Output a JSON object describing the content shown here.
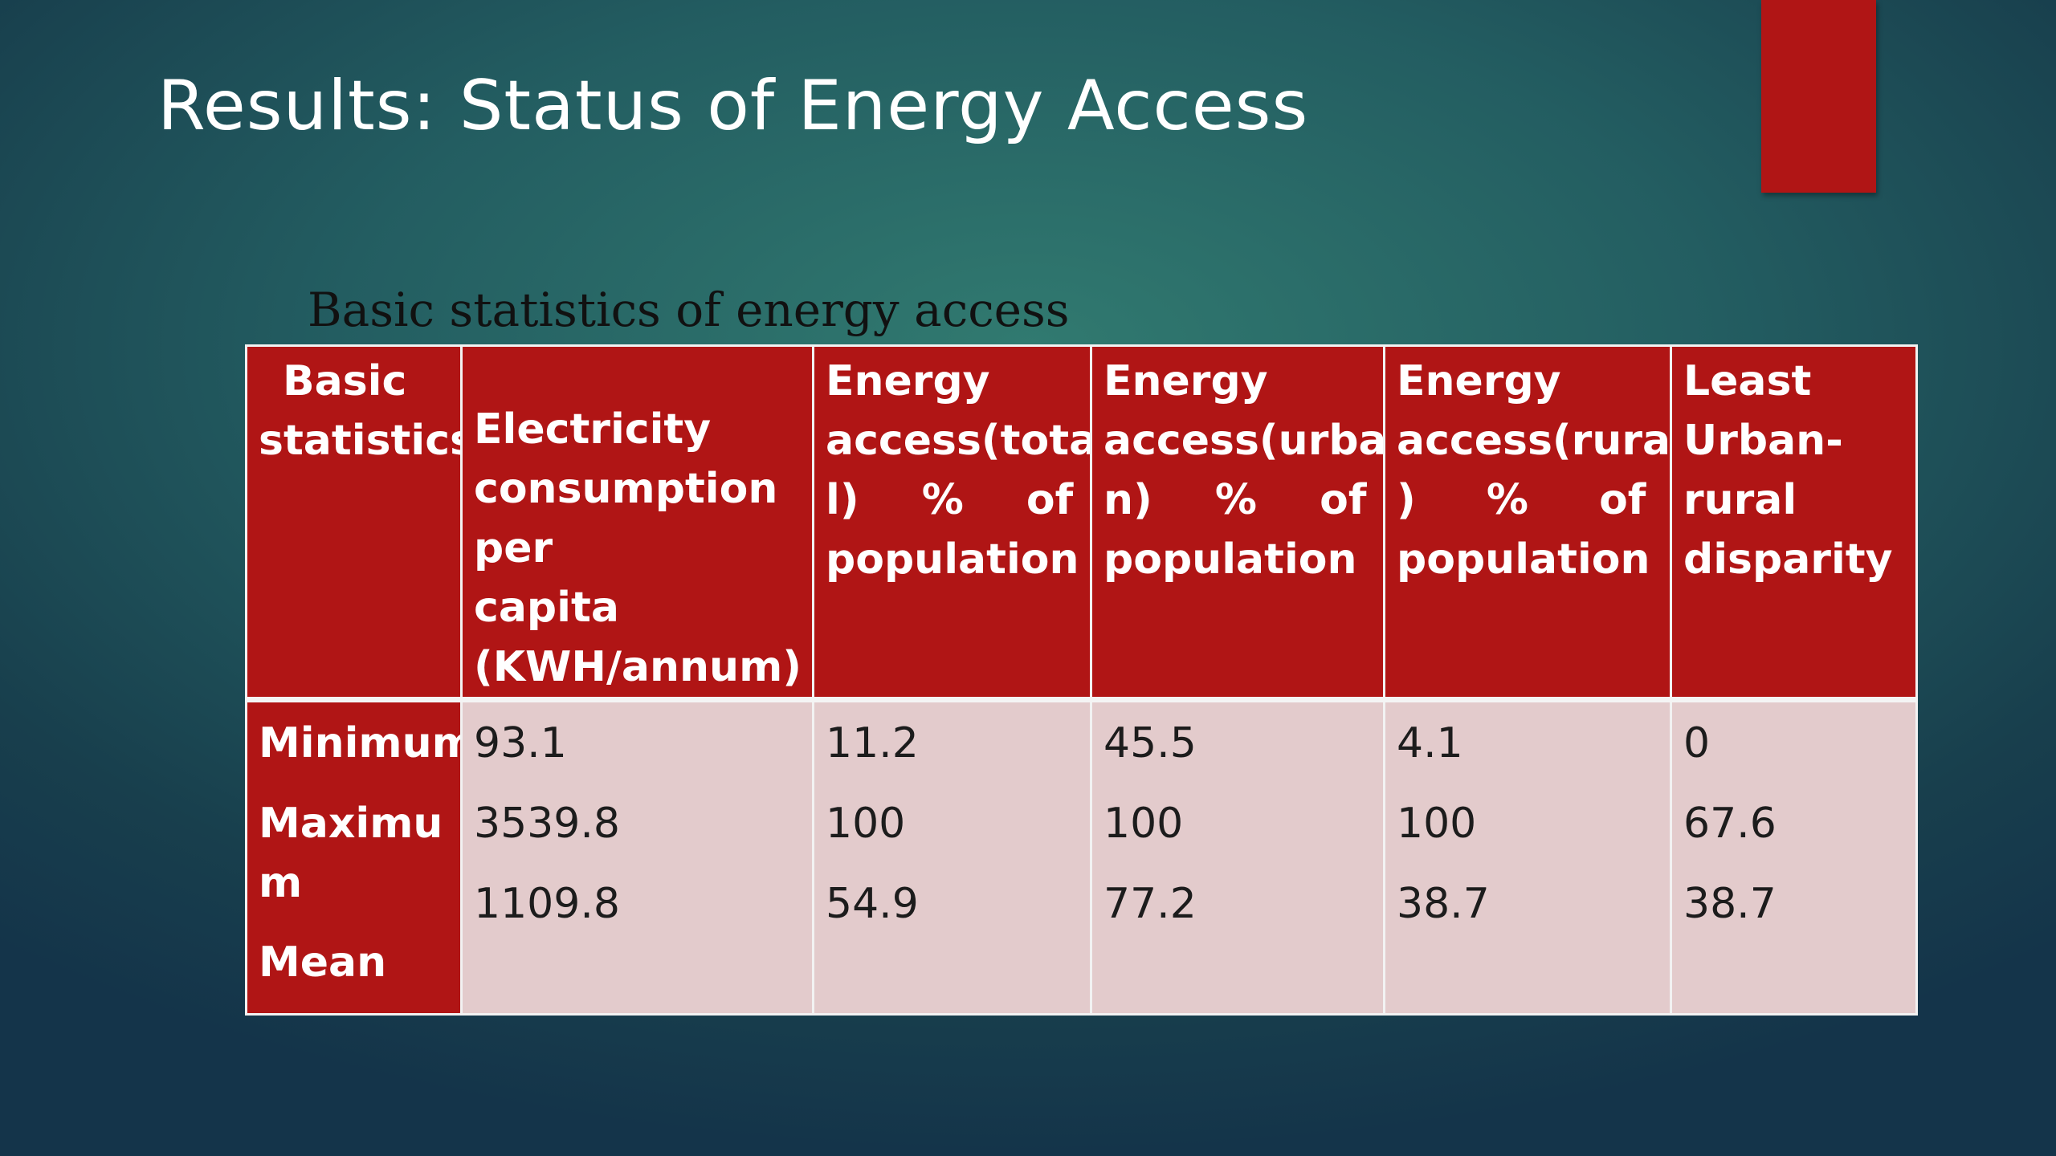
{
  "slide": {
    "title": "Results: Status of Energy Access",
    "caption": "Basic statistics of energy access",
    "accent_color": "#b01515"
  },
  "table": {
    "headers": [
      "Basic statistics",
      "Electricity consumption per capita (KWH/annum)",
      "Energy access(total) % of population",
      "Energy access(urban) % of population",
      "Energy access(rural) % of population",
      "Least Urban-rural disparity"
    ],
    "header_lines": [
      [
        "Basic",
        "statistics"
      ],
      [
        "Electricity",
        "consumption",
        "per capita",
        "(KWH/annum)"
      ],
      [
        "Energy",
        "access(tota",
        "l) % of",
        "population"
      ],
      [
        "Energy",
        "access(urba",
        "n) % of",
        "population"
      ],
      [
        "Energy",
        "access(rural",
        ") % of",
        "population"
      ],
      [
        "Least",
        "Urban-",
        "rural",
        "disparity"
      ]
    ],
    "row_labels": [
      "Minimum",
      "Maximum",
      "Mean"
    ],
    "row_label_lines": [
      [
        "Minimum"
      ],
      [
        "Maximu",
        "m"
      ],
      [
        "Mean"
      ]
    ],
    "columns": [
      [
        "93.1",
        "3539.8",
        "1109.8"
      ],
      [
        "11.2",
        "100",
        "54.9"
      ],
      [
        "45.5",
        "100",
        "77.2"
      ],
      [
        "4.1",
        "100",
        "38.7"
      ],
      [
        "0",
        "67.6",
        "38.7"
      ]
    ]
  }
}
